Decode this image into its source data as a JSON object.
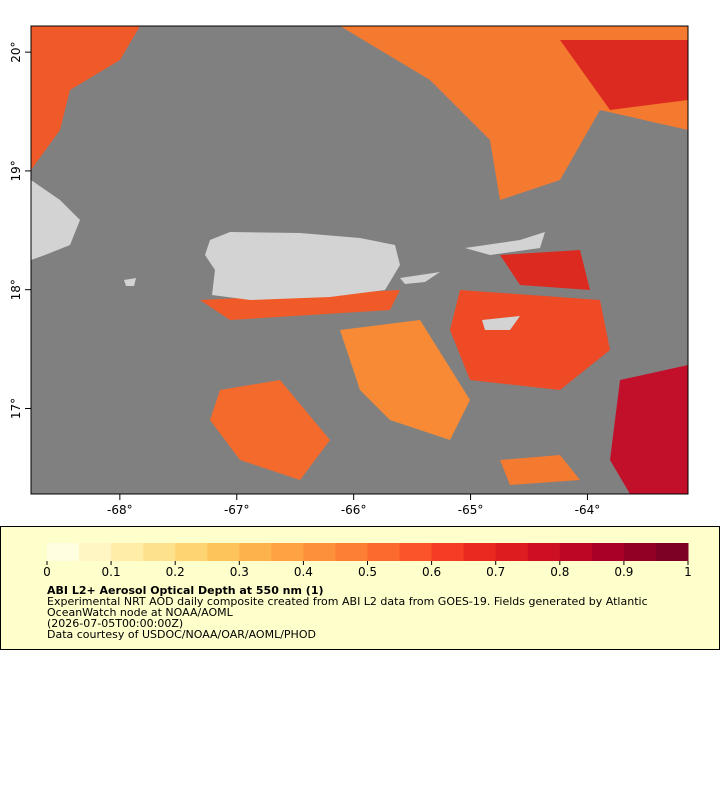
{
  "map": {
    "xlim": [
      -68.76,
      -63.14
    ],
    "ylim": [
      16.28,
      20.22
    ],
    "xticks": [
      {
        "value": -68,
        "label": "-68°"
      },
      {
        "value": -67,
        "label": "-67°"
      },
      {
        "value": -66,
        "label": "-66°"
      },
      {
        "value": -65,
        "label": "-65°"
      },
      {
        "value": -64,
        "label": "-64°"
      }
    ],
    "yticks": [
      {
        "value": 17,
        "label": "17°"
      },
      {
        "value": 18,
        "label": "18°"
      },
      {
        "value": 19,
        "label": "19°"
      },
      {
        "value": 20,
        "label": "20°"
      }
    ]
  },
  "colorbar": {
    "lim": [
      0,
      1
    ],
    "ticks": [
      0,
      0.1,
      0.2,
      0.3,
      0.4,
      0.5,
      0.6,
      0.7,
      0.8,
      0.9,
      1
    ],
    "colors": [
      "#fffee0",
      "#fff6c4",
      "#ffeda8",
      "#fee18c",
      "#fed372",
      "#fec45c",
      "#feb24c",
      "#fea243",
      "#fd913b",
      "#fd7f34",
      "#fc6a2e",
      "#fb5428",
      "#f43d24",
      "#ea2a21",
      "#dd1c1f",
      "#ce0f21",
      "#bd0626",
      "#a80026",
      "#930026",
      "#7d0025"
    ],
    "title": "ABI L2+ Aerosol Optical Depth at 550 nm (1)",
    "lines": [
      "Experimental NRT AOD daily composite created from ABI L2 data from GOES-19. Fields generated by Atlantic",
      "OceanWatch node at NOAA/AOML",
      "(2026-07-05T00:00:00Z)",
      "Data courtesy of USDOC/NOAA/OAR/AOML/PHOD"
    ]
  }
}
